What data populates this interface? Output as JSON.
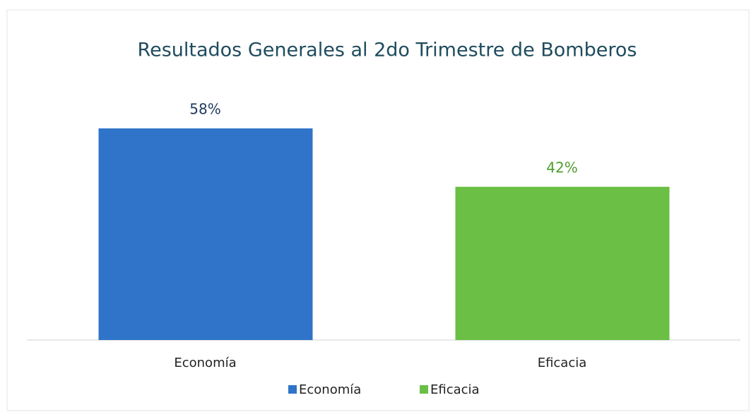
{
  "chart_data": {
    "type": "bar",
    "title": "Resultados Generales al 2do Trimestre de Bomberos",
    "categories": [
      "Economía",
      "Eficacia"
    ],
    "values": [
      58,
      42
    ],
    "value_labels": [
      "58%",
      "42%"
    ],
    "colors": [
      "#2f74c8",
      "#6bbf45"
    ],
    "value_label_colors": [
      "#1f3a5c",
      "#4e9e2e"
    ],
    "legend": "bottom"
  }
}
